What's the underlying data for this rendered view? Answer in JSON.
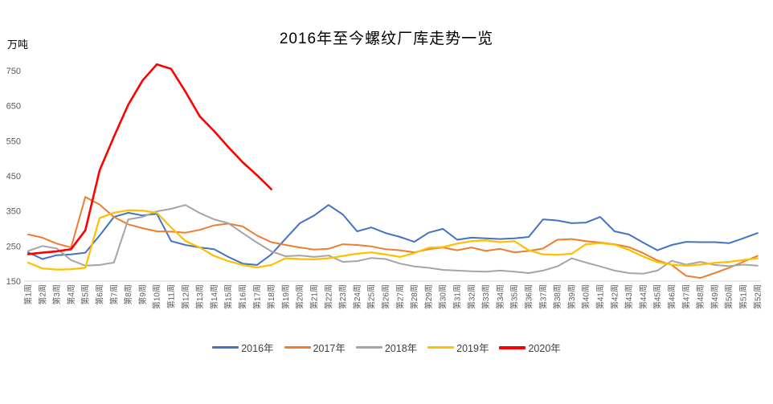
{
  "chart_data": {
    "type": "line",
    "title": "2016年至今螺纹厂库走势一览",
    "ylabel": "万吨",
    "xlabel": "",
    "ylim": [
      150,
      750
    ],
    "y_ticks": [
      750,
      650,
      550,
      450,
      350,
      250,
      150
    ],
    "grid": false,
    "legend_position": "bottom",
    "axis_color": "#D9D9D9",
    "tick_label_color": "#595959",
    "categories": [
      "第1周",
      "第2周",
      "第3周",
      "第4周",
      "第5周",
      "第6周",
      "第7周",
      "第8周",
      "第9周",
      "第10周",
      "第11周",
      "第12周",
      "第13周",
      "第14周",
      "第15周",
      "第16周",
      "第17周",
      "第18周",
      "第19周",
      "第20周",
      "第21周",
      "第22周",
      "第23周",
      "第24周",
      "第25周",
      "第26周",
      "第27周",
      "第28周",
      "第29周",
      "第30周",
      "第31周",
      "第32周",
      "第33周",
      "第34周",
      "第35周",
      "第36周",
      "第37周",
      "第38周",
      "第39周",
      "第40周",
      "第41周",
      "第42周",
      "第43周",
      "第44周",
      "第45周",
      "第46周",
      "第47周",
      "第48周",
      "第49周",
      "第50周",
      "第51周",
      "第52周"
    ],
    "series": [
      {
        "name": "2016年",
        "color": "#4472C4",
        "width": 2,
        "values": [
          232,
          213,
          224,
          226,
          231,
          280,
          333,
          345,
          337,
          342,
          264,
          253,
          246,
          241,
          219,
          200,
          196,
          226,
          271,
          315,
          337,
          367,
          340,
          292,
          303,
          287,
          276,
          262,
          288,
          299,
          268,
          274,
          272,
          270,
          272,
          276,
          326,
          323,
          315,
          317,
          333,
          292,
          283,
          260,
          238,
          253,
          262,
          261,
          261,
          258,
          272,
          287
        ]
      },
      {
        "name": "2017年",
        "color": "#ED7D31",
        "width": 2,
        "values": [
          283,
          274,
          257,
          246,
          390,
          368,
          333,
          312,
          301,
          292,
          291,
          288,
          296,
          309,
          314,
          306,
          280,
          261,
          253,
          246,
          240,
          242,
          255,
          253,
          249,
          241,
          238,
          232,
          241,
          246,
          238,
          246,
          236,
          242,
          232,
          236,
          243,
          268,
          270,
          264,
          260,
          255,
          247,
          230,
          209,
          196,
          165,
          159,
          173,
          188,
          205,
          222
        ]
      },
      {
        "name": "2018年",
        "color": "#A5A5A5",
        "width": 2,
        "values": [
          236,
          250,
          243,
          210,
          194,
          196,
          203,
          326,
          333,
          349,
          356,
          367,
          344,
          326,
          315,
          287,
          260,
          235,
          221,
          223,
          219,
          223,
          205,
          207,
          216,
          213,
          200,
          192,
          188,
          182,
          180,
          178,
          177,
          180,
          177,
          173,
          180,
          192,
          215,
          203,
          192,
          180,
          173,
          171,
          180,
          208,
          197,
          205,
          196,
          193,
          197,
          194
        ]
      },
      {
        "name": "2019年",
        "color": "#FFC000",
        "width": 2.25,
        "values": [
          203,
          186,
          183,
          184,
          188,
          330,
          345,
          352,
          351,
          345,
          303,
          264,
          246,
          222,
          207,
          196,
          189,
          196,
          215,
          213,
          212,
          215,
          222,
          228,
          232,
          226,
          219,
          230,
          245,
          247,
          257,
          264,
          266,
          261,
          264,
          238,
          226,
          225,
          228,
          255,
          258,
          254,
          239,
          220,
          204,
          197,
          194,
          197,
          202,
          205,
          210,
          215
        ]
      },
      {
        "name": "2020年",
        "color": "#FF0000",
        "width": 2.6,
        "values": [
          227,
          231,
          235,
          241,
          295,
          466,
          562,
          653,
          722,
          768,
          755,
          690,
          620,
          578,
          532,
          489,
          452,
          412
        ]
      }
    ]
  }
}
